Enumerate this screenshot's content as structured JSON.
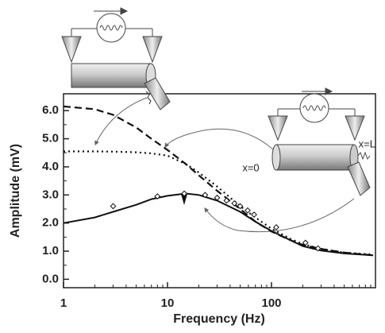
{
  "chart_data": {
    "type": "line",
    "x_label": "Frequency (Hz)",
    "y_label": "Amplitude (mV)",
    "xscale": "log",
    "xlim": [
      1,
      1000
    ],
    "ylim": [
      -0.3,
      6.6
    ],
    "xticks": [
      1,
      10,
      100
    ],
    "yticks": [
      {
        "value": 0,
        "label": "0.0"
      },
      {
        "value": 1,
        "label": "1.0"
      },
      {
        "value": 2,
        "label": "2.0"
      },
      {
        "value": 3,
        "label": "3.0"
      },
      {
        "value": 4,
        "label": "4.0"
      },
      {
        "value": 5,
        "label": "5.0"
      },
      {
        "value": 6,
        "label": "6.0"
      }
    ],
    "annotations": [
      "x=0",
      "x=L"
    ],
    "series": [
      {
        "style": "dashed",
        "color": "#111111",
        "x": [
          1,
          2,
          3,
          5,
          7,
          10,
          15,
          20,
          30,
          50,
          70,
          100,
          150,
          200,
          300,
          500,
          950
        ],
        "values": [
          6.15,
          6.05,
          5.85,
          5.4,
          5.0,
          4.6,
          4.1,
          3.7,
          3.15,
          2.5,
          2.05,
          1.7,
          1.4,
          1.22,
          1.08,
          0.95,
          0.85
        ]
      },
      {
        "style": "dotted",
        "color": "#111111",
        "x": [
          1,
          2,
          3,
          5,
          7,
          10,
          15,
          20,
          30,
          50,
          70,
          100,
          150,
          200,
          300,
          500,
          950
        ],
        "values": [
          4.55,
          4.55,
          4.54,
          4.52,
          4.48,
          4.4,
          4.1,
          3.8,
          3.3,
          2.6,
          2.2,
          1.8,
          1.45,
          1.25,
          1.08,
          0.95,
          0.88
        ]
      },
      {
        "style": "solid",
        "color": "#111111",
        "x": [
          1,
          2,
          3,
          5,
          7,
          10,
          15,
          20,
          30,
          50,
          70,
          100,
          150,
          200,
          300,
          500,
          950
        ],
        "values": [
          2.0,
          2.2,
          2.4,
          2.65,
          2.85,
          2.97,
          3.05,
          3.0,
          2.8,
          2.4,
          2.05,
          1.72,
          1.4,
          1.18,
          1.02,
          0.92,
          0.85
        ]
      },
      {
        "type": "scatter",
        "marker": "diamond",
        "color": "#111111",
        "x": [
          3,
          8,
          14.5,
          23,
          30,
          37,
          44,
          50,
          59,
          68,
          111,
          212,
          280
        ],
        "values": [
          2.6,
          2.95,
          3.05,
          3.0,
          2.9,
          2.8,
          2.7,
          2.6,
          2.45,
          2.3,
          1.85,
          1.3,
          1.1
        ]
      }
    ]
  }
}
